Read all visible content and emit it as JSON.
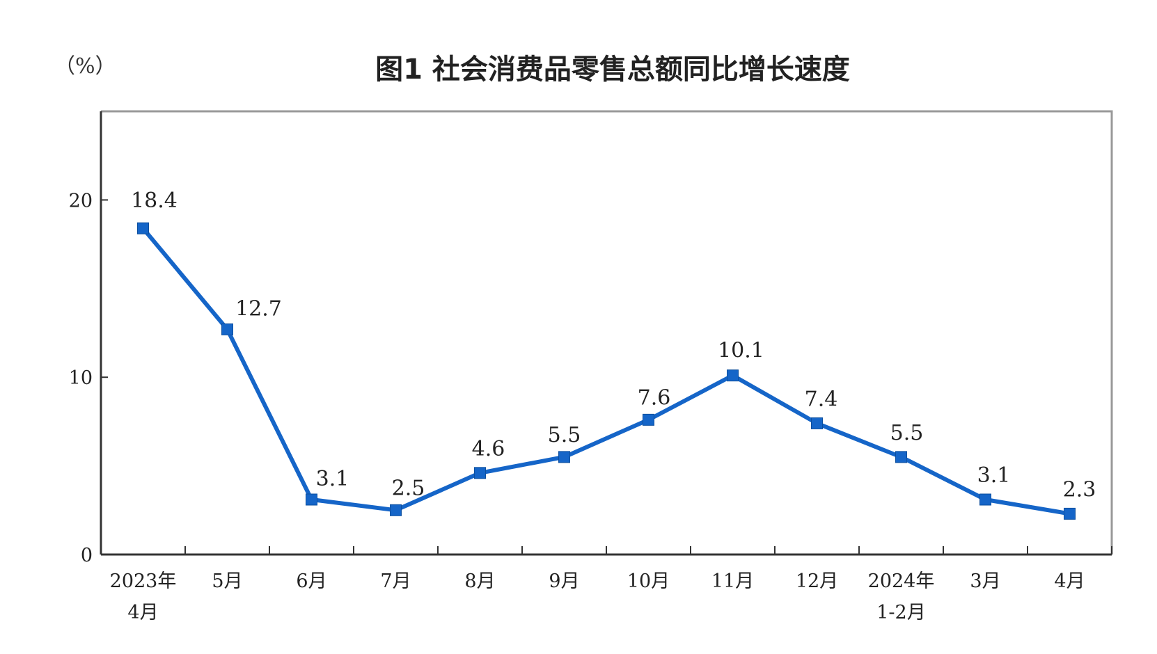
{
  "chart_data": {
    "type": "line",
    "title": "图1  社会消费品零售总额同比增长速度",
    "unit_label": "（%）",
    "xlabel": "",
    "ylabel": "",
    "ylim": [
      0,
      25
    ],
    "yticks": [
      0,
      10,
      20
    ],
    "grid": false,
    "legend": "none",
    "categories": [
      [
        "2023年",
        "4月"
      ],
      [
        "5月"
      ],
      [
        "6月"
      ],
      [
        "7月"
      ],
      [
        "8月"
      ],
      [
        "9月"
      ],
      [
        "10月"
      ],
      [
        "11月"
      ],
      [
        "12月"
      ],
      [
        "2024年",
        "1-2月"
      ],
      [
        "3月"
      ],
      [
        "4月"
      ]
    ],
    "series": [
      {
        "values": [
          18.4,
          12.7,
          3.1,
          2.5,
          4.6,
          5.5,
          7.6,
          10.1,
          7.4,
          5.5,
          3.1,
          2.3
        ],
        "data_labels": [
          "18.4",
          "12.7",
          "3.1",
          "2.5",
          "4.6",
          "5.5",
          "7.6",
          "10.1",
          "7.4",
          "5.5",
          "3.1",
          "2.3"
        ]
      }
    ],
    "colors": {
      "line": "#1565C8",
      "axis": "#333333",
      "frame": "#999999"
    }
  }
}
